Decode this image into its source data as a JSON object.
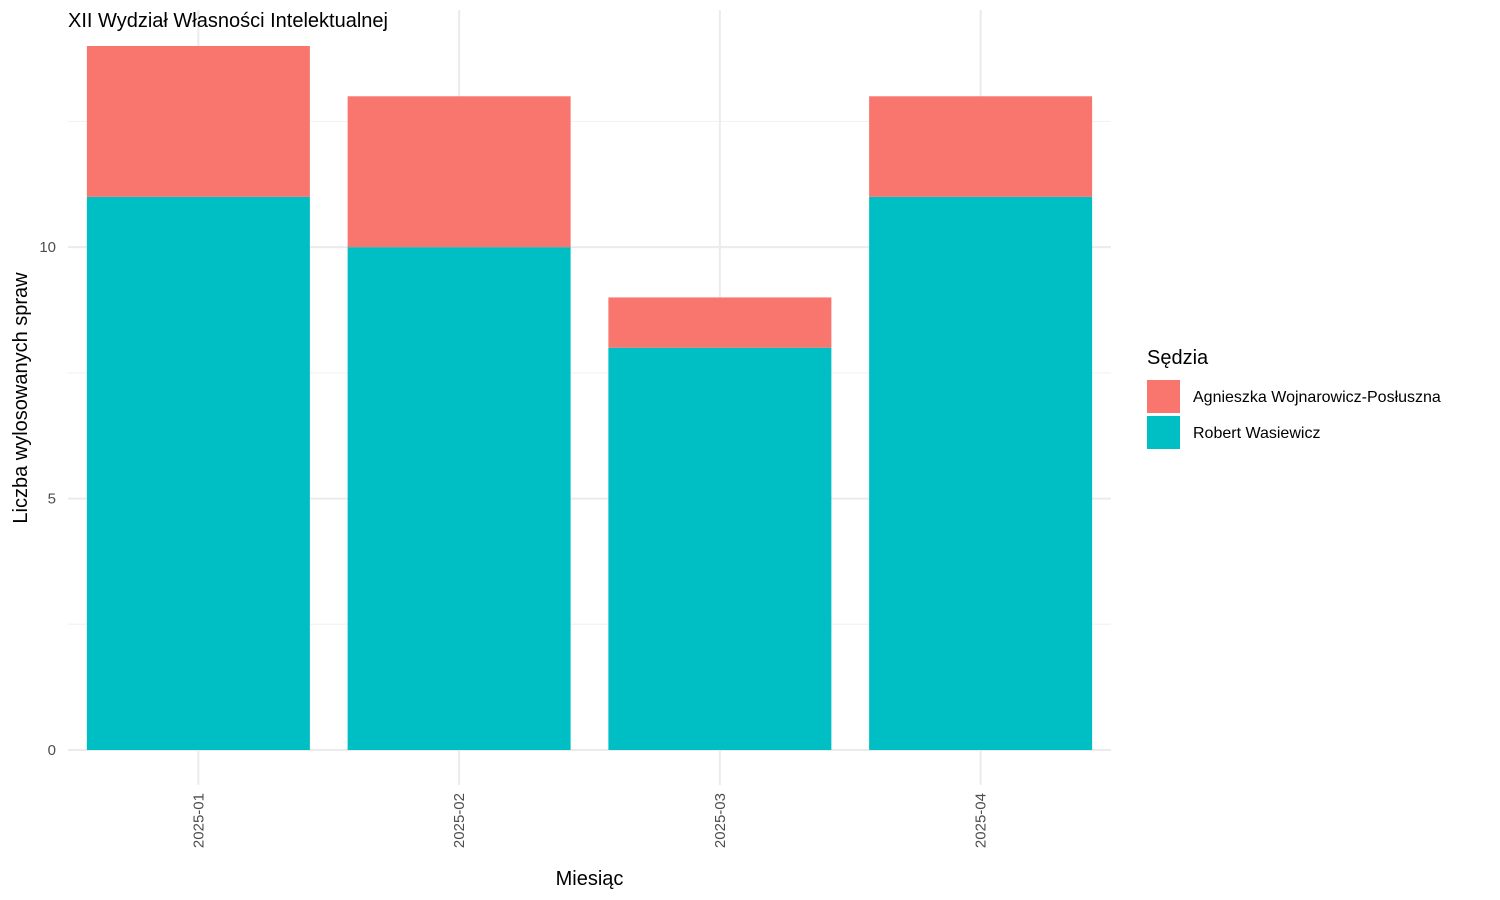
{
  "chart_data": {
    "type": "bar",
    "stacked": true,
    "title": "XII Wydział Własności Intelektualnej",
    "xlabel": "Miesiąc",
    "ylabel": "Liczba wylosowanych spraw",
    "categories": [
      "2025-01",
      "2025-02",
      "2025-03",
      "2025-04"
    ],
    "series": [
      {
        "name": "Robert Wasiewicz",
        "values": [
          11,
          10,
          8,
          11
        ],
        "color": "#00BFC4"
      },
      {
        "name": "Agnieszka Wojnarowicz-Posłuszna",
        "values": [
          3,
          3,
          1,
          2
        ],
        "color": "#F8766D"
      }
    ],
    "stack_order": [
      "Robert Wasiewicz",
      "Agnieszka Wojnarowicz-Posłuszna"
    ],
    "ylim": [
      0,
      14
    ],
    "yticks": [
      0,
      5,
      10
    ],
    "ytick_labels": [
      "0",
      "5",
      "10"
    ],
    "x_tick_rotation": "vertical",
    "grid": true,
    "legend": {
      "title": "Sędzia",
      "placement": "right",
      "entries": [
        "Agnieszka Wojnarowicz-Posłuszna",
        "Robert Wasiewicz"
      ]
    },
    "background": "#FFFFFF"
  }
}
